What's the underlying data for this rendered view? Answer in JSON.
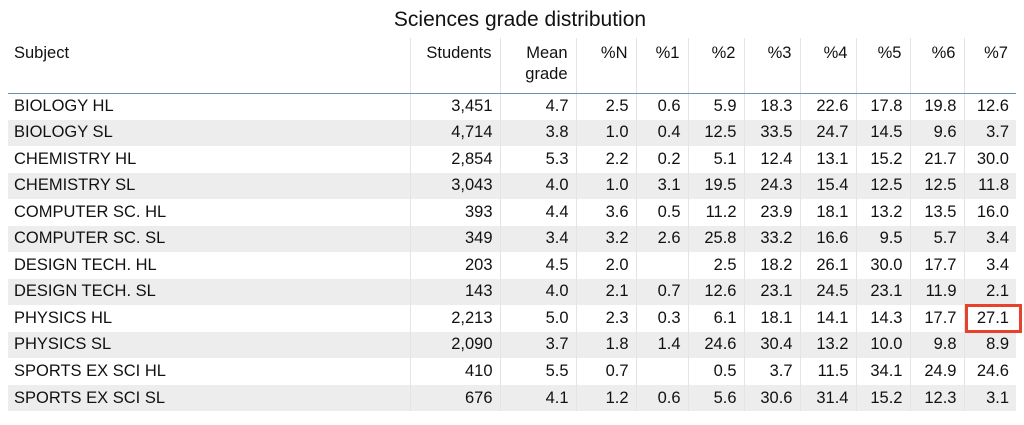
{
  "chart_data": {
    "type": "table",
    "title": "Sciences grade distribution",
    "columns": [
      "Subject",
      "Students",
      "Mean grade",
      "%N",
      "%1",
      "%2",
      "%3",
      "%4",
      "%5",
      "%6",
      "%7"
    ],
    "rows": [
      [
        "BIOLOGY HL",
        "3,451",
        "4.7",
        "2.5",
        "0.6",
        "5.9",
        "18.3",
        "22.6",
        "17.8",
        "19.8",
        "12.6"
      ],
      [
        "BIOLOGY SL",
        "4,714",
        "3.8",
        "1.0",
        "0.4",
        "12.5",
        "33.5",
        "24.7",
        "14.5",
        "9.6",
        "3.7"
      ],
      [
        "CHEMISTRY HL",
        "2,854",
        "5.3",
        "2.2",
        "0.2",
        "5.1",
        "12.4",
        "13.1",
        "15.2",
        "21.7",
        "30.0"
      ],
      [
        "CHEMISTRY SL",
        "3,043",
        "4.0",
        "1.0",
        "3.1",
        "19.5",
        "24.3",
        "15.4",
        "12.5",
        "12.5",
        "11.8"
      ],
      [
        "COMPUTER SC. HL",
        "393",
        "4.4",
        "3.6",
        "0.5",
        "11.2",
        "23.9",
        "18.1",
        "13.2",
        "13.5",
        "16.0"
      ],
      [
        "COMPUTER SC. SL",
        "349",
        "3.4",
        "3.2",
        "2.6",
        "25.8",
        "33.2",
        "16.6",
        "9.5",
        "5.7",
        "3.4"
      ],
      [
        "DESIGN TECH. HL",
        "203",
        "4.5",
        "2.0",
        "",
        "2.5",
        "18.2",
        "26.1",
        "30.0",
        "17.7",
        "3.4"
      ],
      [
        "DESIGN TECH. SL",
        "143",
        "4.0",
        "2.1",
        "0.7",
        "12.6",
        "23.1",
        "24.5",
        "23.1",
        "11.9",
        "2.1"
      ],
      [
        "PHYSICS HL",
        "2,213",
        "5.0",
        "2.3",
        "0.3",
        "6.1",
        "18.1",
        "14.1",
        "14.3",
        "17.7",
        "27.1"
      ],
      [
        "PHYSICS SL",
        "2,090",
        "3.7",
        "1.8",
        "1.4",
        "24.6",
        "30.4",
        "13.2",
        "10.0",
        "9.8",
        "8.9"
      ],
      [
        "SPORTS EX SCI HL",
        "410",
        "5.5",
        "0.7",
        "",
        "0.5",
        "3.7",
        "11.5",
        "34.1",
        "24.9",
        "24.6"
      ],
      [
        "SPORTS EX SCI SL",
        "676",
        "4.1",
        "1.2",
        "0.6",
        "5.6",
        "30.6",
        "31.4",
        "15.2",
        "12.3",
        "3.1"
      ]
    ],
    "highlight": {
      "row": 8,
      "col": 10,
      "color": "#e8412c"
    },
    "colors": {
      "header_rule": "#6f8fb0",
      "stripe": "#ededed"
    }
  }
}
